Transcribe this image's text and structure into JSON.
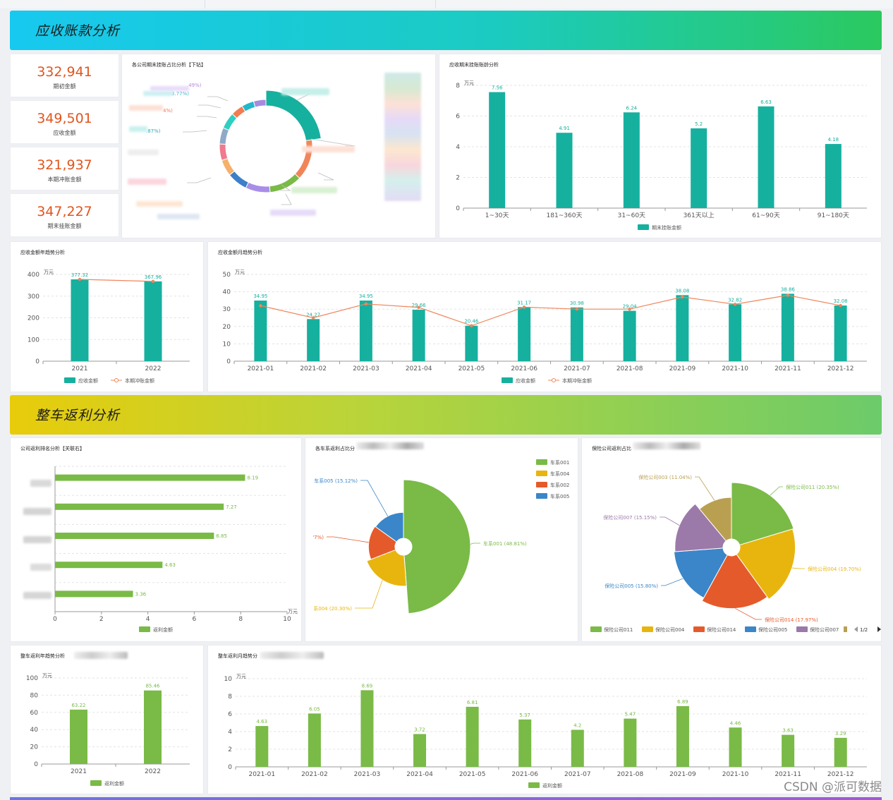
{
  "sections": {
    "receivable": "应收账款分析",
    "rebate": "整车返利分析"
  },
  "kpis": [
    {
      "value": "332,941",
      "label": "期初金额"
    },
    {
      "value": "349,501",
      "label": "应收金额"
    },
    {
      "value": "321,937",
      "label": "本期冲账金额"
    },
    {
      "value": "347,227",
      "label": "期末挂账金额"
    }
  ],
  "panels": {
    "company_ratio": "各公司期末挂账占比分析【下钻】",
    "aging": "应收期末挂账账龄分析",
    "recv_year": "应收金额年趋势分析",
    "recv_month": "应收金额月趋势分析",
    "rebate_rank": "公司返利排名分析【关联右】",
    "series_ratio": "各车系返利占比分",
    "insurer_ratio": "保险公司返利占比",
    "rebate_year": "整车返利年趋势分析",
    "rebate_month": "整车返利月趋势分"
  },
  "watermark": "CSDN @派可数据",
  "colors": {
    "teal": "#16b09f",
    "orange": "#f0855a",
    "green": "#7aba47"
  },
  "chart_data": [
    {
      "id": "company_ratio",
      "type": "pie",
      "subtype": "donut",
      "title": "各公司期末挂账占比分析【下钻】",
      "labels_visible": [
        ".49%)",
        "3.77%)",
        "4%)",
        ".87%)"
      ],
      "slices": [
        {
          "value": 16,
          "color": "#16b09f"
        },
        {
          "value": 10,
          "color": "#f0855a"
        },
        {
          "value": 8,
          "color": "#7aba47"
        },
        {
          "value": 6,
          "color": "#a88ee8"
        },
        {
          "value": 5,
          "color": "#3d7fc8"
        },
        {
          "value": 4,
          "color": "#f5b06a"
        },
        {
          "value": 4,
          "color": "#f07a8e"
        },
        {
          "value": 4,
          "color": "#8eaac8"
        },
        {
          "value": 4,
          "color": "#2ccfc0"
        },
        {
          "value": 3,
          "color": "#f47b4f"
        },
        {
          "value": 3,
          "color": "#21b8cc"
        },
        {
          "value": 3,
          "color": "#a68ae0"
        }
      ]
    },
    {
      "id": "aging",
      "type": "bar",
      "title": "应收期末挂账账龄分析",
      "unit": "万元",
      "categories": [
        "1~30天",
        "181~360天",
        "31~60天",
        "361天以上",
        "61~90天",
        "91~180天"
      ],
      "values": [
        7.56,
        4.91,
        6.24,
        5.2,
        6.63,
        4.18
      ],
      "yticks": [
        0,
        2,
        4,
        6,
        8
      ],
      "ylim": [
        0,
        8
      ],
      "legend": [
        "期末挂账金额"
      ]
    },
    {
      "id": "recv_year",
      "type": "bar",
      "title": "应收金额年趋势分析",
      "unit": "万元",
      "categories": [
        "2021",
        "2022"
      ],
      "series": [
        {
          "name": "应收金额",
          "kind": "bar",
          "values": [
            377.32,
            367.96
          ]
        },
        {
          "name": "本期冲账金额",
          "kind": "line",
          "values": [
            377.32,
            367.96
          ]
        }
      ],
      "yticks": [
        0,
        100,
        200,
        300,
        400
      ],
      "ylim": [
        0,
        400
      ]
    },
    {
      "id": "recv_month",
      "type": "bar",
      "title": "应收金额月趋势分析",
      "unit": "万元",
      "categories": [
        "2021-01",
        "2021-02",
        "2021-03",
        "2021-04",
        "2021-05",
        "2021-06",
        "2021-07",
        "2021-08",
        "2021-09",
        "2021-10",
        "2021-11",
        "2021-12"
      ],
      "series": [
        {
          "name": "应收金额",
          "kind": "bar",
          "values": [
            34.95,
            24.27,
            34.95,
            29.66,
            20.46,
            31.17,
            30.98,
            29.04,
            38.08,
            32.82,
            38.86,
            32.08
          ]
        },
        {
          "name": "本期冲账金额",
          "kind": "line",
          "values": [
            32,
            25,
            33,
            31,
            20.46,
            31.17,
            30,
            30,
            37,
            32.82,
            38,
            32.08
          ]
        }
      ],
      "yticks": [
        0,
        10,
        20,
        30,
        40,
        50
      ],
      "ylim": [
        0,
        50
      ]
    },
    {
      "id": "rebate_rank",
      "type": "bar",
      "orientation": "horizontal",
      "title": "公司返利排名分析【关联右】",
      "unit": "万元",
      "values": [
        8.19,
        7.27,
        6.85,
        4.63,
        3.36
      ],
      "xticks": [
        0,
        2,
        4,
        6,
        8,
        10
      ],
      "xlim": [
        0,
        10
      ],
      "legend": [
        "返利金额"
      ]
    },
    {
      "id": "series_ratio",
      "type": "pie",
      "subtype": "rose",
      "title": "各车系返利占比分",
      "slices": [
        {
          "name": "车系001",
          "label": "车系001 (48.81%)",
          "value": 48.81,
          "color": "#7aba47"
        },
        {
          "name": "车系004",
          "label": "系004 (20.30%)",
          "value": 20.3,
          "color": "#e8b50f"
        },
        {
          "name": "车系002",
          "label": "'7%)",
          "value": 15.77,
          "color": "#e55a2b"
        },
        {
          "name": "车系005",
          "label": "车系005 (15.12%)",
          "value": 15.12,
          "color": "#3a86c8"
        }
      ],
      "legend": [
        "车系001",
        "车系004",
        "车系002",
        "车系005"
      ]
    },
    {
      "id": "insurer_ratio",
      "type": "pie",
      "subtype": "rose",
      "title": "保险公司返利占比",
      "slices": [
        {
          "name": "保险公司011",
          "label": "保险公司011 (20.35%)",
          "value": 20.35,
          "color": "#7aba47"
        },
        {
          "name": "保险公司004",
          "label": "保险公司004 (19.70%)",
          "value": 19.7,
          "color": "#e8b50f"
        },
        {
          "name": "保险公司014",
          "label": "保险公司014 (17.97%)",
          "value": 17.97,
          "color": "#e55a2b"
        },
        {
          "name": "保险公司005",
          "label": "保险公司005 (15.80%)",
          "value": 15.8,
          "color": "#3a86c8"
        },
        {
          "name": "保险公司007",
          "label": "保险公司007 (15.15%)",
          "value": 15.15,
          "color": "#9b79a8"
        },
        {
          "name": "保险公司003",
          "label": "保险公司003 (11.04%)",
          "value": 11.04,
          "color": "#b9a051"
        }
      ],
      "legend": [
        "保险公司011",
        "保险公司004",
        "保险公司014",
        "保险公司005",
        "保险公司007"
      ],
      "page": "1/2"
    },
    {
      "id": "rebate_year",
      "type": "bar",
      "title": "整车返利年趋势分析",
      "unit": "万元",
      "categories": [
        "2021",
        "2022"
      ],
      "values": [
        63.22,
        85.46
      ],
      "yticks": [
        0,
        20,
        40,
        60,
        80,
        100
      ],
      "ylim": [
        0,
        100
      ],
      "legend": [
        "返利金额"
      ]
    },
    {
      "id": "rebate_month",
      "type": "bar",
      "title": "整车返利月趋势分",
      "unit": "万元",
      "categories": [
        "2021-01",
        "2021-02",
        "2021-03",
        "2021-04",
        "2021-05",
        "2021-06",
        "2021-07",
        "2021-08",
        "2021-09",
        "2021-10",
        "2021-11",
        "2021-12"
      ],
      "values": [
        4.63,
        6.05,
        8.69,
        3.72,
        6.81,
        5.37,
        4.2,
        5.47,
        6.89,
        4.46,
        3.63,
        3.29
      ],
      "yticks": [
        0,
        2,
        4,
        6,
        8,
        10
      ],
      "ylim": [
        0,
        10
      ],
      "legend": [
        "返利金额"
      ]
    }
  ]
}
